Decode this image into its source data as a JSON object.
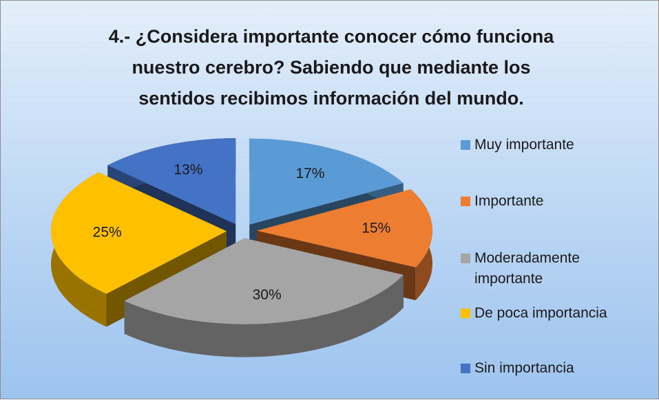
{
  "chart_data": {
    "type": "pie3d",
    "title": "4.- ¿Considera importante conocer cómo funciona nuestro cerebro? Sabiendo que mediante los sentidos recibimos información del mundo.",
    "categories": [
      "Muy importante",
      "Importante",
      "Moderadamente importante",
      "De poca importancia",
      "Sin importancia"
    ],
    "values": [
      17,
      15,
      30,
      25,
      13
    ],
    "value_labels": [
      "17%",
      "15%",
      "30%",
      "25%",
      "13%"
    ],
    "colors": [
      "#5b9bd5",
      "#ed7d31",
      "#a5a5a5",
      "#ffc000",
      "#4472c4"
    ],
    "legend": "right"
  }
}
